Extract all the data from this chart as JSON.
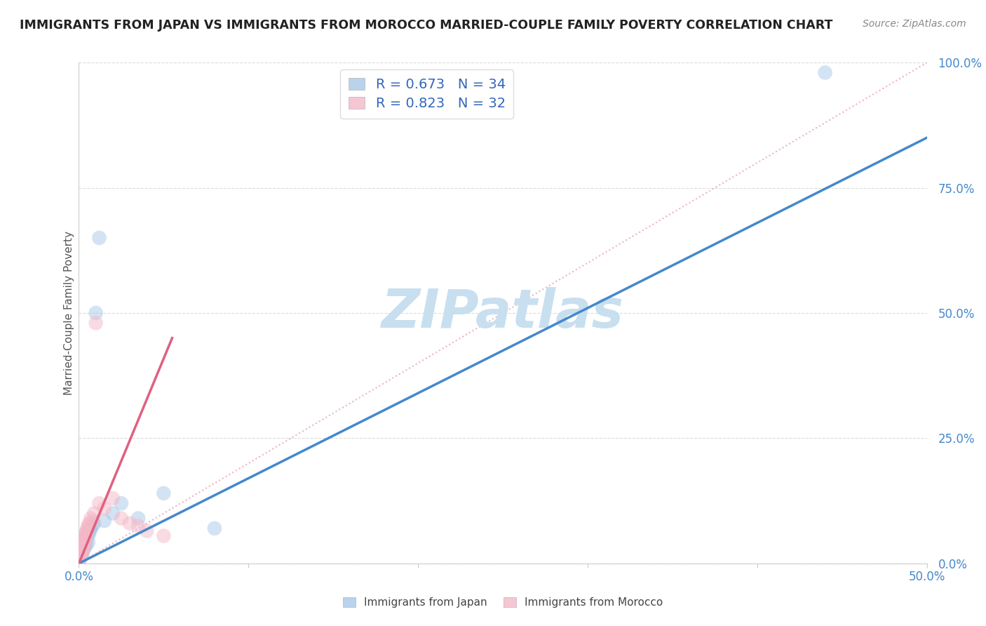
{
  "title": "IMMIGRANTS FROM JAPAN VS IMMIGRANTS FROM MOROCCO MARRIED-COUPLE FAMILY POVERTY CORRELATION CHART",
  "source": "Source: ZipAtlas.com",
  "ylabel": "Married-Couple Family Poverty",
  "ytick_vals": [
    0,
    25,
    50,
    75,
    100
  ],
  "xlim": [
    0,
    50
  ],
  "ylim": [
    0,
    100
  ],
  "japan_R": 0.673,
  "japan_N": 34,
  "morocco_R": 0.823,
  "morocco_N": 32,
  "japan_color": "#a8c8e8",
  "morocco_color": "#f4b8c8",
  "japan_line_color": "#4488cc",
  "morocco_line_color": "#e06080",
  "ref_line_color": "#e8a0b0",
  "legend_text_color": "#3366bb",
  "watermark": "ZIPatlas",
  "watermark_color": "#c8dff0",
  "background_color": "#ffffff",
  "grid_color": "#d8d8d8",
  "japan_scatter_x": [
    0.05,
    0.08,
    0.1,
    0.12,
    0.15,
    0.18,
    0.2,
    0.22,
    0.25,
    0.28,
    0.3,
    0.32,
    0.35,
    0.38,
    0.4,
    0.42,
    0.45,
    0.48,
    0.5,
    0.55,
    0.6,
    0.65,
    0.7,
    0.8,
    0.9,
    1.0,
    1.2,
    1.5,
    2.0,
    2.5,
    3.5,
    5.0,
    8.0,
    44.0
  ],
  "japan_scatter_y": [
    1.0,
    1.5,
    2.0,
    1.2,
    2.5,
    1.8,
    3.0,
    2.2,
    3.5,
    2.8,
    4.0,
    3.2,
    3.8,
    4.5,
    5.0,
    3.5,
    4.8,
    5.5,
    6.0,
    4.2,
    5.8,
    6.5,
    7.0,
    7.5,
    8.0,
    50.0,
    65.0,
    8.5,
    10.0,
    12.0,
    9.0,
    14.0,
    7.0,
    98.0
  ],
  "morocco_scatter_x": [
    0.05,
    0.08,
    0.1,
    0.12,
    0.15,
    0.18,
    0.2,
    0.22,
    0.25,
    0.28,
    0.3,
    0.32,
    0.35,
    0.38,
    0.4,
    0.42,
    0.45,
    0.5,
    0.55,
    0.6,
    0.7,
    0.8,
    0.9,
    1.0,
    1.2,
    1.5,
    2.0,
    2.5,
    3.0,
    3.5,
    4.0,
    5.0
  ],
  "morocco_scatter_y": [
    1.5,
    2.0,
    1.0,
    2.5,
    3.0,
    2.0,
    3.5,
    3.0,
    4.0,
    3.5,
    4.5,
    4.0,
    5.0,
    5.5,
    6.0,
    5.0,
    6.5,
    7.0,
    7.5,
    8.0,
    9.0,
    8.5,
    10.0,
    48.0,
    12.0,
    11.0,
    13.0,
    9.0,
    8.0,
    7.5,
    6.5,
    5.5
  ],
  "japan_line_x": [
    0,
    50
  ],
  "japan_line_y": [
    0,
    85
  ],
  "morocco_line_x": [
    0,
    5.5
  ],
  "morocco_line_y": [
    0,
    45
  ]
}
